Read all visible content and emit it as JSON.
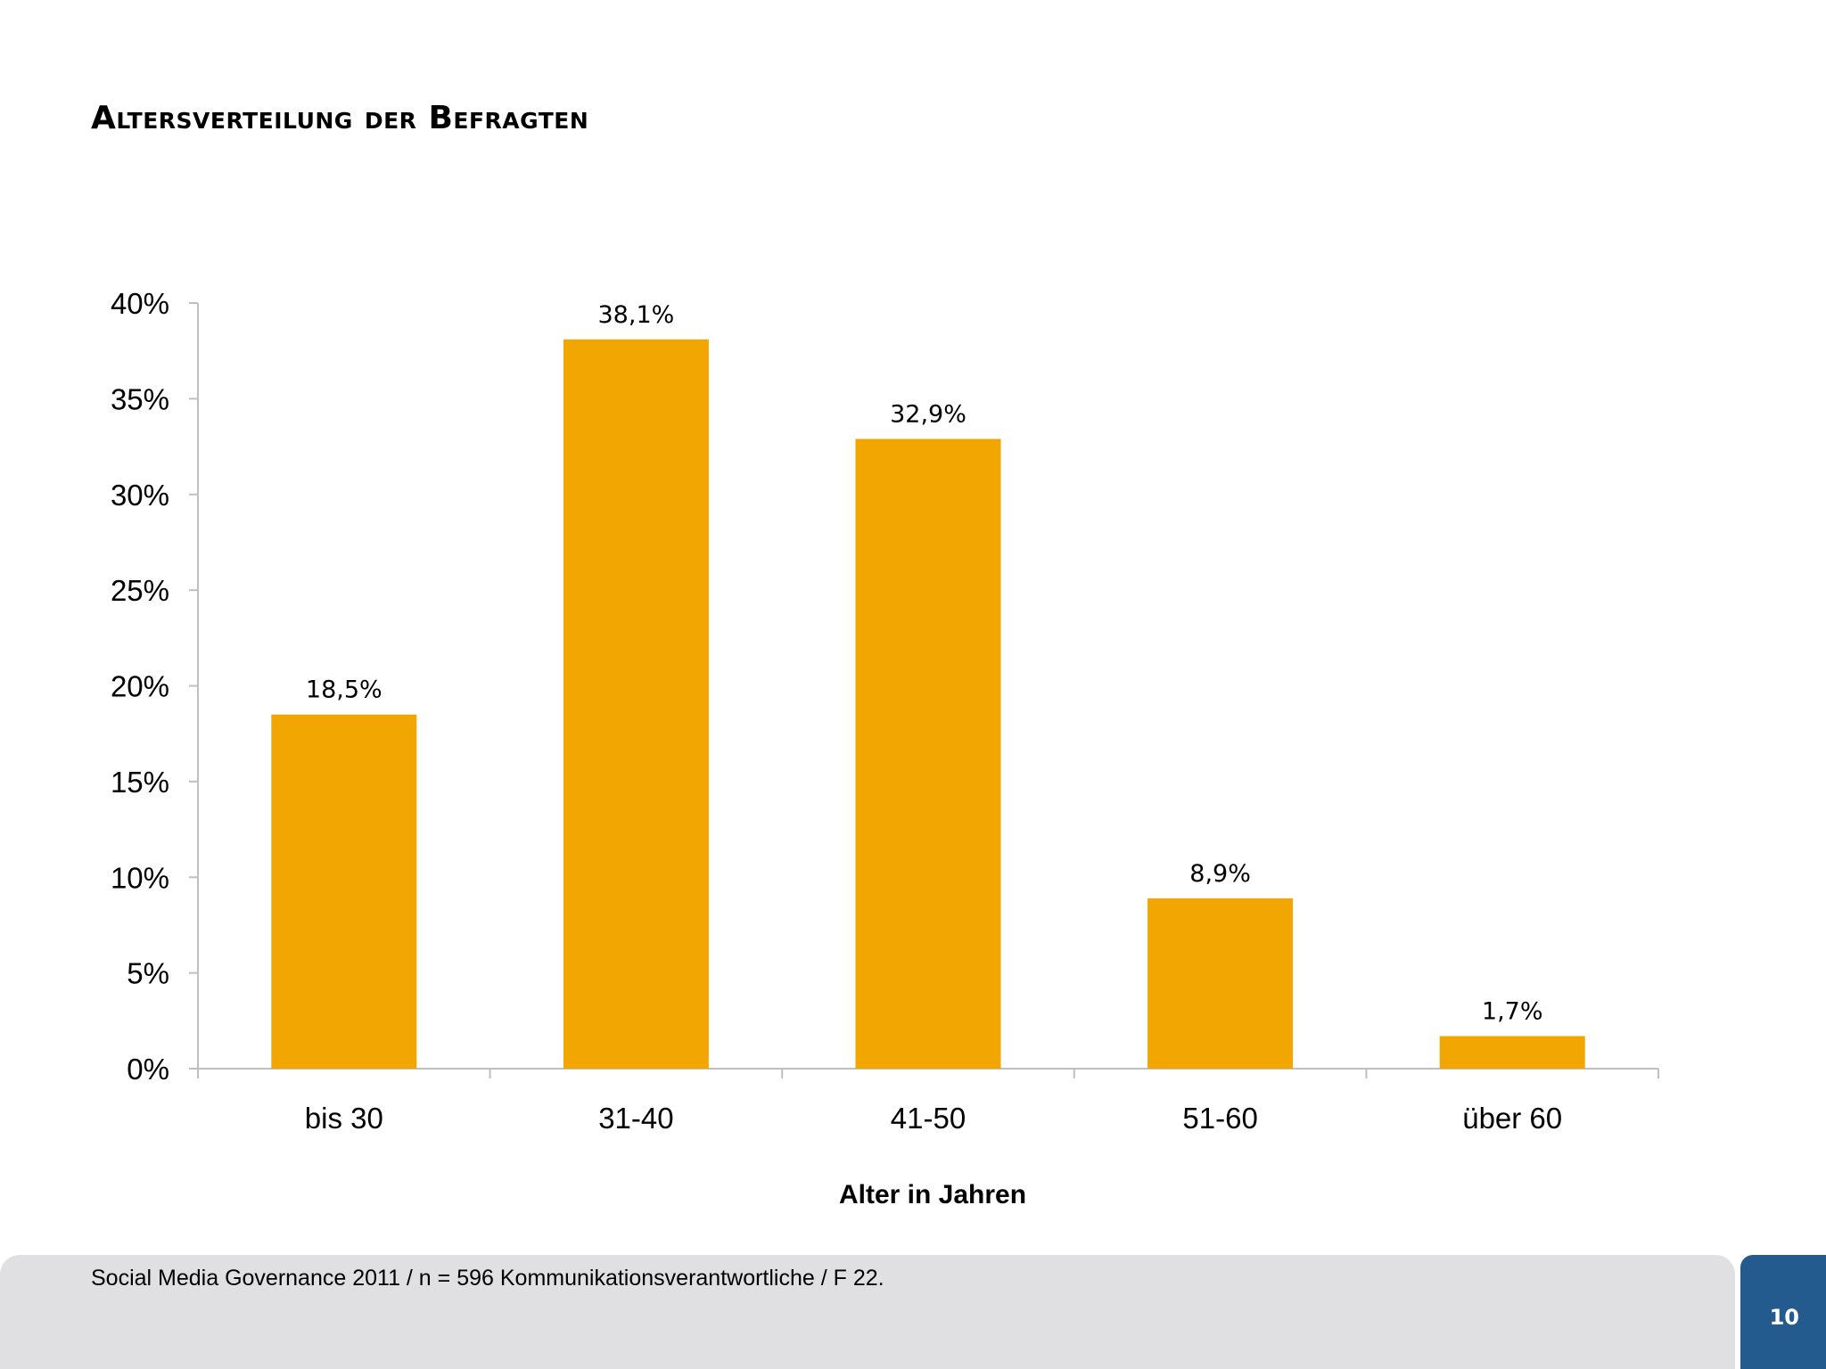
{
  "slide": {
    "title": "Altersverteilung der Befragten",
    "footer": "Social Media Governance 2011 / n = 596 Kommunikationsverantwortliche / F 22.",
    "page_number": "10"
  },
  "colors": {
    "bar": "#f2a602",
    "axis": "#bfbfbf",
    "footer_bg": "#e0e0e2",
    "badge_bg": "#245b8e"
  },
  "chart_data": {
    "type": "bar",
    "title": "",
    "categories": [
      "bis 30",
      "31-40",
      "41-50",
      "51-60",
      "über 60"
    ],
    "values": [
      18.5,
      38.1,
      32.9,
      8.9,
      1.7
    ],
    "value_labels": [
      "18,5%",
      "38,1%",
      "32,9%",
      "8,9%",
      "1,7%"
    ],
    "xlabel": "Alter in Jahren",
    "ylabel": "",
    "ylim": [
      0,
      40
    ],
    "yticks": [
      0,
      5,
      10,
      15,
      20,
      25,
      30,
      35,
      40
    ],
    "ytick_labels": [
      "0%",
      "5%",
      "10%",
      "15%",
      "20%",
      "25%",
      "30%",
      "35%",
      "40%"
    ],
    "grid": false,
    "legend": "none"
  }
}
